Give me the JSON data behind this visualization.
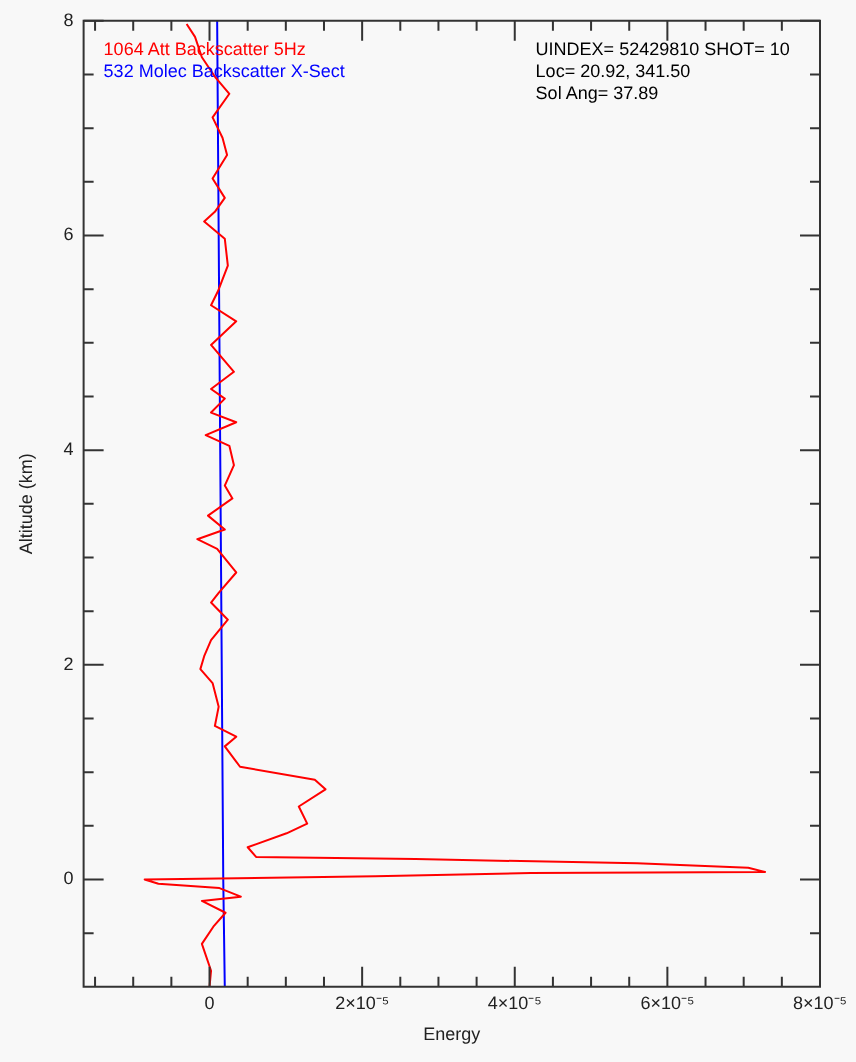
{
  "chart_data": {
    "type": "line",
    "xlabel": "Energy",
    "ylabel": "Altitude (km)",
    "xlim": [
      -1.65e-05,
      8e-05
    ],
    "ylim": [
      -1,
      8
    ],
    "xticks": [
      {
        "value": -1.5e-05,
        "label": null
      },
      {
        "value": -1e-05,
        "label": null
      },
      {
        "value": -5e-06,
        "label": null
      },
      0,
      {
        "value": 5e-06,
        "label": null
      },
      {
        "value": 1e-05,
        "label": null
      },
      {
        "value": 1.5e-05,
        "label": null
      },
      {
        "value": 2e-05,
        "label": "2×10⁻⁵"
      },
      {
        "value": 2.5e-05,
        "label": null
      },
      {
        "value": 3e-05,
        "label": null
      },
      {
        "value": 3.5e-05,
        "label": null
      },
      {
        "value": 4e-05,
        "label": "4×10⁻⁵"
      },
      {
        "value": 4.5e-05,
        "label": null
      },
      {
        "value": 5e-05,
        "label": null
      },
      {
        "value": 5.5e-05,
        "label": null
      },
      {
        "value": 6e-05,
        "label": "6×10⁻⁵"
      },
      {
        "value": 6.5e-05,
        "label": null
      },
      {
        "value": 7e-05,
        "label": null
      },
      {
        "value": 7.5e-05,
        "label": null
      },
      {
        "value": 8e-05,
        "label": "8×10⁻⁵"
      }
    ],
    "yticks": [
      {
        "value": -0.5,
        "label": null
      },
      0,
      {
        "value": 0.5,
        "label": null
      },
      {
        "value": 1,
        "label": null
      },
      {
        "value": 1.5,
        "label": null
      },
      2,
      {
        "value": 2.5,
        "label": null
      },
      {
        "value": 3,
        "label": null
      },
      {
        "value": 3.5,
        "label": null
      },
      4,
      {
        "value": 4.5,
        "label": null
      },
      {
        "value": 5,
        "label": null
      },
      {
        "value": 5.5,
        "label": null
      },
      6,
      {
        "value": 6.5,
        "label": null
      },
      {
        "value": 7,
        "label": null
      },
      {
        "value": 7.5,
        "label": null
      },
      8
    ],
    "legend": "top left",
    "annotations": [
      "UINDEX= 52429810 SHOT= 10",
      "Loc= 20.92, 341.50",
      "Sol Ang= 37.89"
    ],
    "series": [
      {
        "name": "1064 Att Backscatter 5Hz",
        "color": "#ff0000",
        "x": [
          -3e-06,
          -1.9e-06,
          -1e-06,
          8e-07,
          2.6e-06,
          4e-07,
          1.7e-06,
          2.3e-06,
          4e-07,
          2e-06,
          7e-07,
          -7e-07,
          2e-06,
          2.4e-06,
          1.1e-06,
          2e-07,
          3.5e-06,
          2e-07,
          3.2e-06,
          2e-07,
          2e-06,
          2e-07,
          3.5e-06,
          -5e-07,
          2.6e-06,
          3.2e-06,
          2e-06,
          3e-06,
          -2e-07,
          2e-06,
          -1.6e-06,
          1e-06,
          3.5e-06,
          1.2e-06,
          2e-07,
          2.4e-06,
          2e-07,
          -7e-07,
          -1.2e-06,
          4e-07,
          1.2e-06,
          7e-07,
          3.5e-06,
          2e-06,
          4e-06,
          1.38e-05,
          1.52e-05,
          1.17e-05,
          1.28e-05,
          1.01e-05,
          5e-06,
          6.1e-06,
          2.7e-05,
          5.6e-05,
          7.06e-05,
          7.28e-05,
          4.21e-05,
          2.17e-05,
          -8.5e-06,
          -6.7e-06,
          1.3e-06,
          4.1e-06,
          -1e-06,
          2.1e-06,
          5e-07,
          -1e-06,
          2e-07,
          0.0
        ],
        "values": [
          7.97,
          7.85,
          7.66,
          7.47,
          7.32,
          7.1,
          6.91,
          6.75,
          6.53,
          6.35,
          6.22,
          6.13,
          5.97,
          5.72,
          5.48,
          5.35,
          5.2,
          4.98,
          4.73,
          4.57,
          4.48,
          4.35,
          4.26,
          4.14,
          4.04,
          3.86,
          3.67,
          3.55,
          3.39,
          3.26,
          3.17,
          3.08,
          2.86,
          2.67,
          2.58,
          2.42,
          2.23,
          2.08,
          1.96,
          1.83,
          1.61,
          1.43,
          1.33,
          1.24,
          1.05,
          0.93,
          0.84,
          0.68,
          0.52,
          0.43,
          0.3,
          0.21,
          0.19,
          0.15,
          0.11,
          0.07,
          0.06,
          0.03,
          0.0,
          -0.04,
          -0.08,
          -0.16,
          -0.2,
          -0.31,
          -0.44,
          -0.6,
          -0.85,
          -1.0
        ]
      },
      {
        "name": "532 Molec Backscatter X-Sect",
        "color": "#0000ff",
        "x": [
          1e-06,
          1.5e-06,
          1.8e-06,
          2e-06
        ],
        "values": [
          8,
          3,
          0,
          -1
        ]
      }
    ]
  }
}
